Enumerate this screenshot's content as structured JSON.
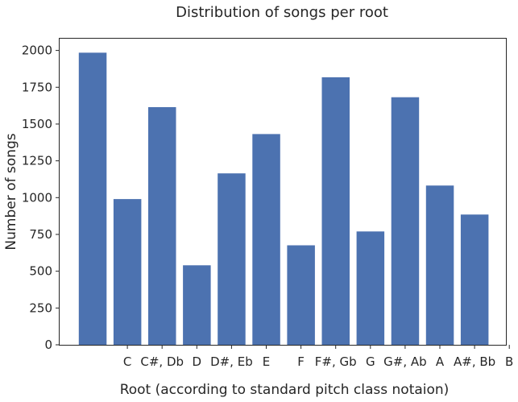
{
  "chart_data": {
    "type": "bar",
    "title": "Distribution of songs per root",
    "xlabel": "Root (according to standard pitch class notaion)",
    "ylabel": "Number of songs",
    "xtick_labels": [
      "C",
      "C#, Db",
      "D",
      "D#, Eb",
      "E",
      "F",
      "F#, Gb",
      "G",
      "G#, Ab",
      "A",
      "A#, Bb",
      "B"
    ],
    "values": [
      1985,
      990,
      1615,
      540,
      1165,
      1432,
      676,
      1818,
      770,
      1682,
      1082,
      885
    ],
    "ylim": [
      0,
      2080
    ],
    "yticks": [
      0,
      250,
      500,
      750,
      1000,
      1250,
      1500,
      1750,
      2000
    ],
    "grid": false,
    "bar_color": "#4c72b0"
  }
}
